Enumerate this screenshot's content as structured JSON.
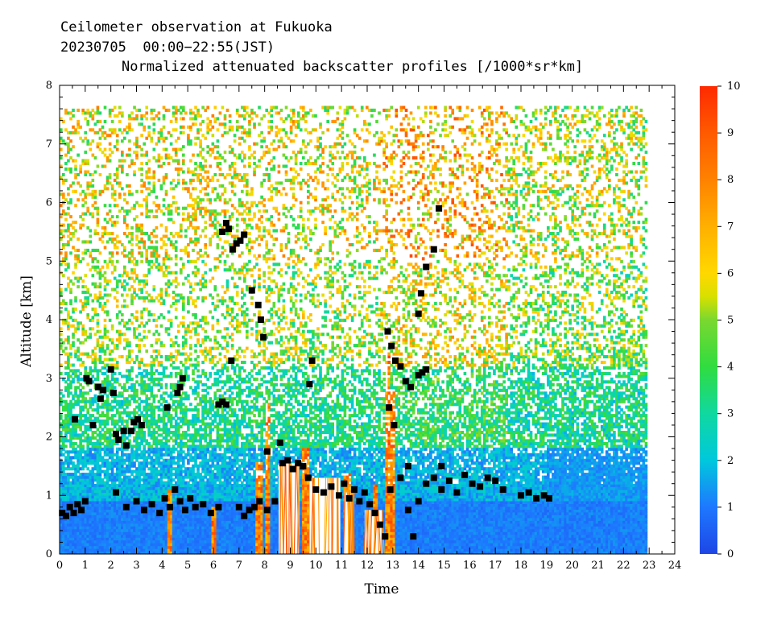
{
  "header": {
    "line1": "Ceilometer observation at Fukuoka",
    "line2": "20230705  00:00−22:55(JST)",
    "line3": "Normalized attenuated backscatter profiles [/1000*sr*km]"
  },
  "chart_data": {
    "type": "heatmap",
    "title": "Normalized attenuated backscatter profiles [/1000*sr*km]",
    "xlabel": "Time",
    "ylabel": "Altitude [km]",
    "xlim": [
      0,
      24
    ],
    "ylim": [
      0,
      8
    ],
    "data_extent": {
      "time": [
        0,
        22.92
      ],
      "altitude": [
        0,
        7.65
      ]
    },
    "x_ticks": [
      0,
      1,
      2,
      3,
      4,
      5,
      6,
      7,
      8,
      9,
      10,
      11,
      12,
      13,
      14,
      15,
      16,
      17,
      18,
      19,
      20,
      21,
      22,
      23,
      24
    ],
    "y_ticks": [
      0,
      1,
      2,
      3,
      4,
      5,
      6,
      7,
      8
    ],
    "colorbar": {
      "range": [
        0,
        10
      ],
      "ticks": [
        0,
        1,
        2,
        3,
        4,
        5,
        6,
        7,
        8,
        9,
        10
      ],
      "stops": [
        {
          "v": 0,
          "c": "#1e46e6"
        },
        {
          "v": 1,
          "c": "#1e78ff"
        },
        {
          "v": 2,
          "c": "#00c8dc"
        },
        {
          "v": 3,
          "c": "#10d8a0"
        },
        {
          "v": 4,
          "c": "#30dc40"
        },
        {
          "v": 5,
          "c": "#7ad830"
        },
        {
          "v": 5.5,
          "c": "#d8e000"
        },
        {
          "v": 6,
          "c": "#ffd800"
        },
        {
          "v": 7,
          "c": "#ffb000"
        },
        {
          "v": 8,
          "c": "#ff8200"
        },
        {
          "v": 9,
          "c": "#ff5a00"
        },
        {
          "v": 10,
          "c": "#ff2a00"
        }
      ]
    },
    "cloud_base_markers": [
      [
        0.1,
        0.7
      ],
      [
        0.25,
        0.65
      ],
      [
        0.4,
        0.8
      ],
      [
        0.55,
        0.7
      ],
      [
        0.7,
        0.85
      ],
      [
        0.85,
        0.75
      ],
      [
        1.0,
        0.9
      ],
      [
        0.6,
        2.3
      ],
      [
        1.05,
        3.0
      ],
      [
        1.15,
        2.95
      ],
      [
        1.3,
        2.2
      ],
      [
        1.5,
        2.85
      ],
      [
        1.6,
        2.65
      ],
      [
        1.7,
        2.8
      ],
      [
        2.0,
        3.15
      ],
      [
        2.1,
        2.75
      ],
      [
        2.2,
        2.05
      ],
      [
        2.3,
        1.95
      ],
      [
        2.5,
        2.1
      ],
      [
        2.6,
        1.85
      ],
      [
        2.8,
        2.1
      ],
      [
        2.9,
        2.25
      ],
      [
        3.05,
        2.3
      ],
      [
        3.2,
        2.2
      ],
      [
        2.2,
        1.05
      ],
      [
        2.6,
        0.8
      ],
      [
        3.0,
        0.9
      ],
      [
        3.3,
        0.75
      ],
      [
        3.6,
        0.85
      ],
      [
        3.9,
        0.7
      ],
      [
        4.1,
        0.95
      ],
      [
        4.3,
        0.8
      ],
      [
        4.5,
        1.1
      ],
      [
        4.7,
        0.9
      ],
      [
        4.9,
        0.75
      ],
      [
        5.1,
        0.95
      ],
      [
        5.3,
        0.8
      ],
      [
        5.6,
        0.85
      ],
      [
        5.9,
        0.7
      ],
      [
        6.2,
        0.8
      ],
      [
        4.2,
        2.5
      ],
      [
        4.6,
        2.75
      ],
      [
        4.7,
        2.85
      ],
      [
        4.8,
        3.0
      ],
      [
        6.2,
        2.55
      ],
      [
        6.35,
        2.6
      ],
      [
        6.5,
        2.55
      ],
      [
        6.7,
        3.3
      ],
      [
        6.35,
        5.5
      ],
      [
        6.5,
        5.65
      ],
      [
        6.6,
        5.55
      ],
      [
        6.75,
        5.2
      ],
      [
        6.9,
        5.3
      ],
      [
        7.05,
        5.35
      ],
      [
        7.2,
        5.45
      ],
      [
        7.5,
        4.5
      ],
      [
        7.75,
        4.25
      ],
      [
        7.85,
        4.0
      ],
      [
        7.95,
        3.7
      ],
      [
        8.1,
        1.75
      ],
      [
        7.0,
        0.8
      ],
      [
        7.2,
        0.65
      ],
      [
        7.4,
        0.75
      ],
      [
        7.6,
        0.8
      ],
      [
        7.8,
        0.9
      ],
      [
        8.1,
        0.75
      ],
      [
        8.4,
        0.9
      ],
      [
        8.6,
        1.9
      ],
      [
        8.7,
        1.55
      ],
      [
        8.9,
        1.6
      ],
      [
        9.1,
        1.45
      ],
      [
        9.3,
        1.55
      ],
      [
        9.5,
        1.5
      ],
      [
        9.7,
        1.3
      ],
      [
        9.85,
        3.3
      ],
      [
        9.75,
        2.9
      ],
      [
        10.0,
        1.1
      ],
      [
        10.3,
        1.05
      ],
      [
        10.6,
        1.15
      ],
      [
        10.9,
        1.0
      ],
      [
        11.1,
        1.2
      ],
      [
        11.3,
        0.95
      ],
      [
        11.5,
        1.1
      ],
      [
        11.7,
        0.9
      ],
      [
        11.9,
        1.05
      ],
      [
        12.1,
        0.85
      ],
      [
        12.3,
        0.7
      ],
      [
        12.5,
        0.5
      ],
      [
        12.7,
        0.3
      ],
      [
        12.9,
        1.1
      ],
      [
        12.8,
        3.8
      ],
      [
        12.95,
        3.55
      ],
      [
        13.1,
        3.3
      ],
      [
        13.3,
        3.2
      ],
      [
        13.5,
        2.95
      ],
      [
        13.7,
        2.85
      ],
      [
        14.0,
        3.05
      ],
      [
        14.15,
        3.1
      ],
      [
        14.3,
        3.15
      ],
      [
        12.85,
        2.5
      ],
      [
        13.05,
        2.2
      ],
      [
        14.0,
        4.1
      ],
      [
        14.1,
        4.45
      ],
      [
        14.3,
        4.9
      ],
      [
        14.6,
        5.2
      ],
      [
        14.8,
        5.9
      ],
      [
        13.6,
        0.75
      ],
      [
        13.8,
        0.3
      ],
      [
        14.0,
        0.9
      ],
      [
        14.3,
        1.2
      ],
      [
        14.6,
        1.3
      ],
      [
        14.9,
        1.1
      ],
      [
        15.2,
        1.25
      ],
      [
        15.5,
        1.05
      ],
      [
        15.8,
        1.35
      ],
      [
        16.1,
        1.2
      ],
      [
        16.4,
        1.15
      ],
      [
        16.7,
        1.3
      ],
      [
        17.0,
        1.25
      ],
      [
        17.3,
        1.1
      ],
      [
        18.0,
        1.0
      ],
      [
        18.3,
        1.05
      ],
      [
        18.6,
        0.95
      ],
      [
        18.9,
        1.0
      ],
      [
        19.1,
        0.95
      ],
      [
        13.3,
        1.3
      ],
      [
        13.6,
        1.5
      ],
      [
        14.9,
        1.5
      ]
    ]
  }
}
